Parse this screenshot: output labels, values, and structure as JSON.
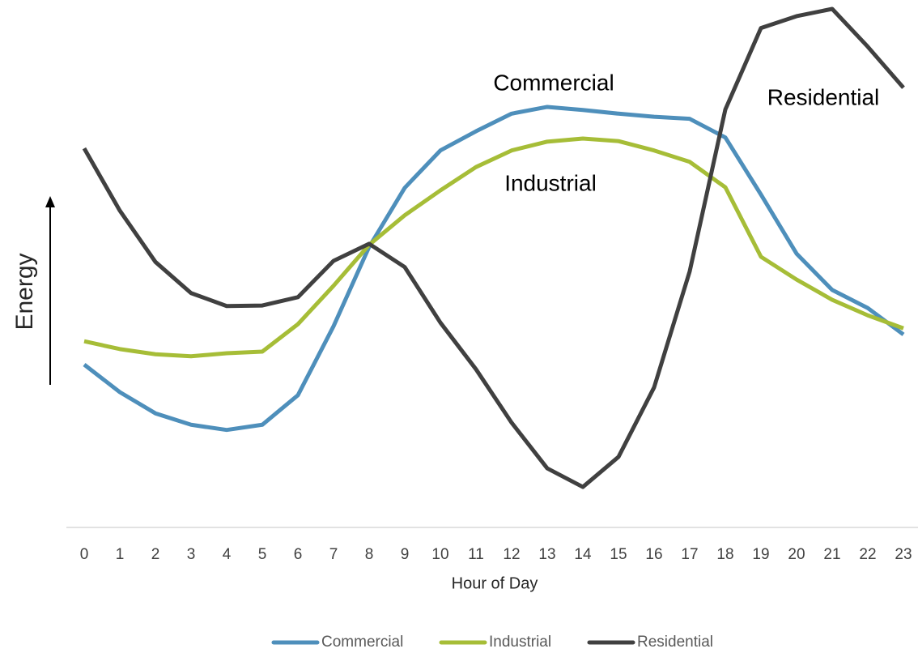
{
  "chart_data": {
    "type": "line",
    "xlabel": "Hour of Day",
    "ylabel": "Energy",
    "categories": [
      "0",
      "1",
      "2",
      "3",
      "4",
      "5",
      "6",
      "7",
      "8",
      "9",
      "10",
      "11",
      "12",
      "13",
      "14",
      "15",
      "16",
      "17",
      "18",
      "19",
      "20",
      "21",
      "22",
      "23"
    ],
    "ylim": [
      0,
      100
    ],
    "annotations": [
      "Commercial",
      "Industrial",
      "Residential"
    ],
    "series": [
      {
        "name": "Commercial",
        "color": "#4e8fbb",
        "values": [
          31.4,
          26.1,
          22.0,
          19.8,
          18.8,
          19.8,
          25.5,
          38.8,
          54.1,
          65.5,
          72.7,
          76.4,
          79.8,
          81.1,
          80.5,
          79.8,
          79.2,
          78.8,
          75.2,
          64.2,
          52.8,
          45.8,
          42.3,
          37.2
        ]
      },
      {
        "name": "Industrial",
        "color": "#a6bd37",
        "values": [
          35.9,
          34.4,
          33.4,
          33.0,
          33.6,
          33.9,
          39.2,
          46.6,
          54.5,
          60.2,
          65.0,
          69.5,
          72.7,
          74.4,
          75.0,
          74.5,
          72.7,
          70.5,
          65.6,
          52.2,
          47.8,
          43.9,
          40.9,
          38.4
        ]
      },
      {
        "name": "Residential",
        "color": "#404040",
        "values": [
          73.1,
          61.1,
          51.2,
          45.2,
          42.7,
          42.8,
          44.4,
          51.4,
          54.7,
          50.2,
          39.5,
          30.5,
          20.2,
          11.4,
          7.8,
          13.6,
          27.0,
          49.4,
          80.6,
          96.3,
          98.6,
          100,
          92.7,
          84.8
        ]
      }
    ]
  }
}
